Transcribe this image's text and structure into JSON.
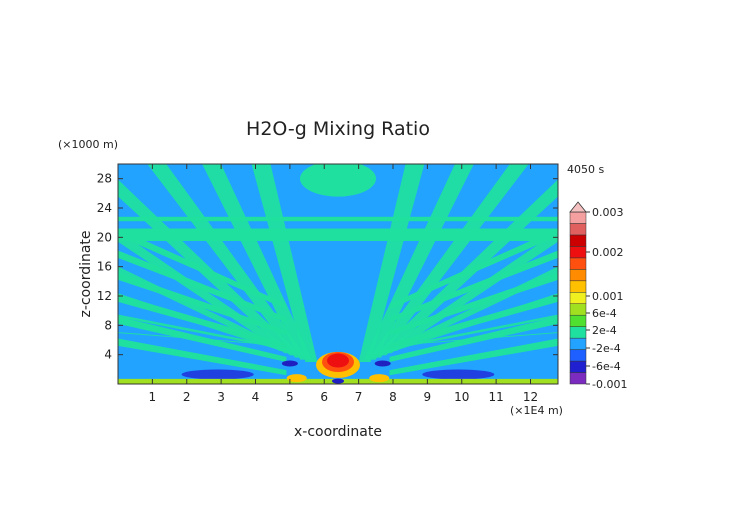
{
  "chart_data": {
    "type": "heatmap",
    "title": "H2O-g Mixing Ratio",
    "time_label": "4050 s",
    "xlabel": "x-coordinate",
    "ylabel": "z-coordinate",
    "x_unit": "(×1E4 m)",
    "y_unit": "(×1000 m)",
    "xlim": [
      0,
      12.8
    ],
    "ylim": [
      0,
      30
    ],
    "x_ticks": [
      "1",
      "2",
      "3",
      "4",
      "5",
      "6",
      "7",
      "8",
      "9",
      "10",
      "11",
      "12"
    ],
    "y_ticks": [
      "4",
      "8",
      "12",
      "16",
      "20",
      "24",
      "28"
    ],
    "colorbar": {
      "labels": [
        "0.003",
        "0.002",
        "0.001",
        "6e-4",
        "2e-4",
        "-2e-4",
        "-6e-4",
        "-0.001"
      ],
      "colors": [
        "#7b2cbf",
        "#2020d0",
        "#1e60ff",
        "#21a3ff",
        "#20e0a0",
        "#50e030",
        "#a0e020",
        "#f0f020",
        "#ffc000",
        "#ff8c00",
        "#ff5010",
        "#ee1010",
        "#cc0000",
        "#e06060",
        "#f5a0a0"
      ],
      "top_extend": "triangle"
    },
    "field_description": "Symmetric gravity-wave pattern of alternating positive (green) and negative (blue) anomalies radiating upward from a source near x=6.4, z=2; strong positive core (red, ~0.003) at x~6.2-6.6, z~1-5; negative lobes (dark blue, ~-6e-4) near surface at x~2.5-3.5 and x~9-10."
  }
}
